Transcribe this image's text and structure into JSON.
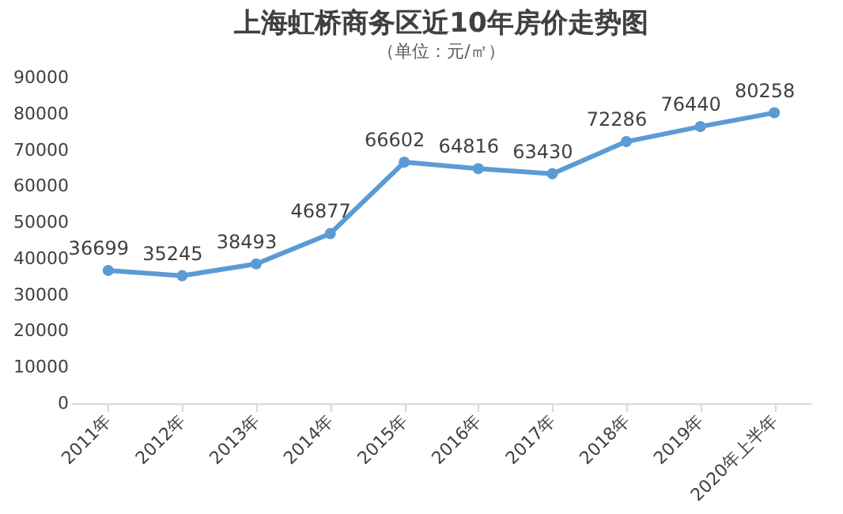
{
  "chart_data": {
    "type": "line",
    "title": "上海虹桥商务区近10年房价走势图",
    "subtitle": "（单位：元/㎡）",
    "categories": [
      "2011年",
      "2012年",
      "2013年",
      "2014年",
      "2015年",
      "2016年",
      "2017年",
      "2018年",
      "2019年",
      "2020年上半年"
    ],
    "series": [
      {
        "color": "#5b9bd5",
        "values": [
          36699,
          35245,
          38493,
          46877,
          66602,
          64816,
          63430,
          72286,
          76440,
          80258
        ]
      }
    ],
    "ylim": [
      0,
      90000
    ],
    "yticks": [
      0,
      10000,
      20000,
      30000,
      40000,
      50000,
      60000,
      70000,
      80000,
      90000
    ],
    "data_labels": true,
    "grid": false,
    "marker": "circle",
    "line_style": "solid"
  }
}
